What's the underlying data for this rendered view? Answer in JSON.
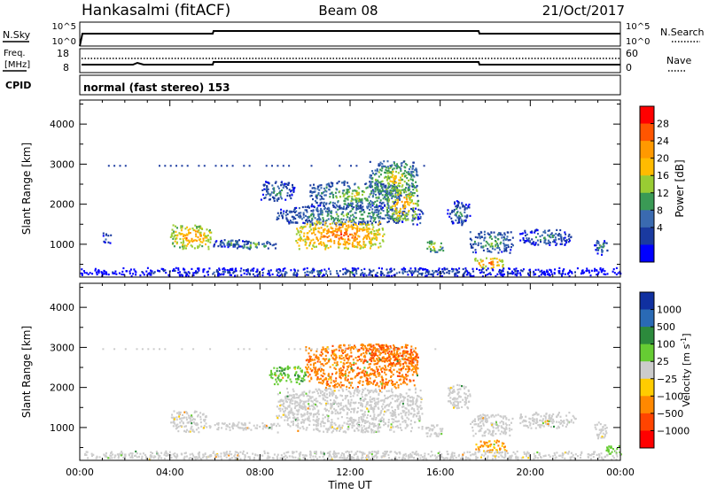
{
  "header": {
    "station": "Hankasalmi (fitACF)",
    "beam": "Beam 08",
    "date": "21/Oct/2017"
  },
  "strips": {
    "nsky_label": "N.Sky",
    "nsky_ticks": [
      "10^5",
      "10^0"
    ],
    "nsearch_label": "N.Search",
    "nsearch_ticks": [
      "10^5",
      "10^0"
    ],
    "freq_label_line1": "Freq.",
    "freq_label_line2": "[MHz]",
    "freq_ticks": [
      "18",
      "8"
    ],
    "nave_label": "Nave",
    "nave_ticks": [
      "60",
      "0"
    ],
    "cpid_label": "CPID",
    "cpid_value": "normal (fast stereo) 153"
  },
  "panels": {
    "ylabel": "Slant Range [km]",
    "yticks": [
      "4000",
      "3000",
      "2000",
      "1000"
    ],
    "xticks": [
      "00:00",
      "04:00",
      "08:00",
      "12:00",
      "16:00",
      "20:00",
      "00:00"
    ],
    "xlabel": "Time UT"
  },
  "power_scale": {
    "title": "Power [dB]",
    "labels": [
      "28",
      "24",
      "20",
      "16",
      "12",
      "8",
      "4"
    ],
    "colors": [
      "#ff0000",
      "#ff5500",
      "#ff9900",
      "#ffbb00",
      "#99cc33",
      "#3a9a55",
      "#3a6ab0",
      "#1a3aa0",
      "#0000ff"
    ]
  },
  "velocity_scale": {
    "title": "Velocity [m s",
    "title_sup": "-1",
    "title_end": "]",
    "labels": [
      "1000",
      "500",
      "100",
      "25",
      "−25",
      "−100",
      "−500",
      "−1000"
    ],
    "colors": [
      "#1030a0",
      "#2a6ab5",
      "#2c8a3c",
      "#66cc33",
      "#cccccc",
      "#ffcc00",
      "#ff8800",
      "#ff4400",
      "#ff0000"
    ]
  },
  "chart_data": [
    {
      "type": "heatmap",
      "title": "Power",
      "xlabel": "Time UT",
      "ylabel": "Slant Range [km]",
      "x_range_hours": [
        0,
        24
      ],
      "ylim": [
        180,
        4600
      ],
      "colorbar": {
        "label": "Power [dB]",
        "range": [
          2,
          30
        ]
      },
      "regions": [
        {
          "t": [
            1.0,
            1.4
          ],
          "r": [
            1050,
            1300
          ],
          "v": 10
        },
        {
          "t": [
            4.0,
            5.8
          ],
          "r": [
            900,
            1500
          ],
          "v": 21
        },
        {
          "t": [
            5.8,
            7.5
          ],
          "r": [
            950,
            1150
          ],
          "v": 9
        },
        {
          "t": [
            6.5,
            8.7
          ],
          "r": [
            900,
            1100
          ],
          "v": 12
        },
        {
          "t": [
            8.6,
            15.2
          ],
          "r": [
            1500,
            2000
          ],
          "v": 11
        },
        {
          "t": [
            9.5,
            13.5
          ],
          "r": [
            900,
            1600
          ],
          "v": 23
        },
        {
          "t": [
            10.2,
            14.2
          ],
          "r": [
            1900,
            2600
          ],
          "v": 13
        },
        {
          "t": [
            12.8,
            15.0
          ],
          "r": [
            2200,
            3100
          ],
          "v": 15
        },
        {
          "t": [
            13.6,
            15.0
          ],
          "r": [
            1600,
            2400
          ],
          "v": 20
        },
        {
          "t": [
            8.0,
            9.5
          ],
          "r": [
            2100,
            2600
          ],
          "v": 10
        },
        {
          "t": [
            15.3,
            16.1
          ],
          "r": [
            800,
            1100
          ],
          "v": 16
        },
        {
          "t": [
            16.3,
            17.3
          ],
          "r": [
            1500,
            2100
          ],
          "v": 9
        },
        {
          "t": [
            17.3,
            19.2
          ],
          "r": [
            800,
            1350
          ],
          "v": 12
        },
        {
          "t": [
            17.5,
            18.8
          ],
          "r": [
            420,
            680
          ],
          "v": 23
        },
        {
          "t": [
            19.5,
            21.8
          ],
          "r": [
            1000,
            1400
          ],
          "v": 9
        },
        {
          "t": [
            22.8,
            23.4
          ],
          "r": [
            750,
            1150
          ],
          "v": 9
        },
        {
          "t": [
            0.0,
            24.0
          ],
          "r": [
            220,
            430
          ],
          "v": 6
        }
      ]
    },
    {
      "type": "heatmap",
      "title": "Velocity",
      "xlabel": "Time UT",
      "ylabel": "Slant Range [km]",
      "x_range_hours": [
        0,
        24
      ],
      "ylim": [
        180,
        4600
      ],
      "colorbar": {
        "label": "Velocity [m s-1]",
        "range": [
          -1000,
          1000
        ]
      },
      "regions": [
        {
          "t": [
            4.0,
            5.6
          ],
          "r": [
            900,
            1450
          ],
          "v": 0
        },
        {
          "t": [
            5.6,
            8.7
          ],
          "r": [
            950,
            1150
          ],
          "v": 0
        },
        {
          "t": [
            8.7,
            15.2
          ],
          "r": [
            900,
            2000
          ],
          "v": 0
        },
        {
          "t": [
            8.4,
            10.0
          ],
          "r": [
            2100,
            2550
          ],
          "v": 80
        },
        {
          "t": [
            10.0,
            15.0
          ],
          "r": [
            2000,
            3100
          ],
          "v": -400
        },
        {
          "t": [
            12.8,
            15.0
          ],
          "r": [
            2600,
            3100
          ],
          "v": -500
        },
        {
          "t": [
            15.3,
            16.1
          ],
          "r": [
            800,
            1100
          ],
          "v": 0
        },
        {
          "t": [
            16.3,
            17.3
          ],
          "r": [
            1500,
            2100
          ],
          "v": 0
        },
        {
          "t": [
            17.3,
            19.2
          ],
          "r": [
            800,
            1350
          ],
          "v": 0
        },
        {
          "t": [
            17.5,
            19.0
          ],
          "r": [
            400,
            700
          ],
          "v": -120
        },
        {
          "t": [
            19.5,
            22.0
          ],
          "r": [
            1000,
            1400
          ],
          "v": 0
        },
        {
          "t": [
            22.8,
            23.4
          ],
          "r": [
            750,
            1150
          ],
          "v": 0
        },
        {
          "t": [
            23.3,
            24.0
          ],
          "r": [
            350,
            560
          ],
          "v": 60
        },
        {
          "t": [
            0.0,
            24.0
          ],
          "r": [
            220,
            430
          ],
          "v": 0
        }
      ]
    }
  ]
}
